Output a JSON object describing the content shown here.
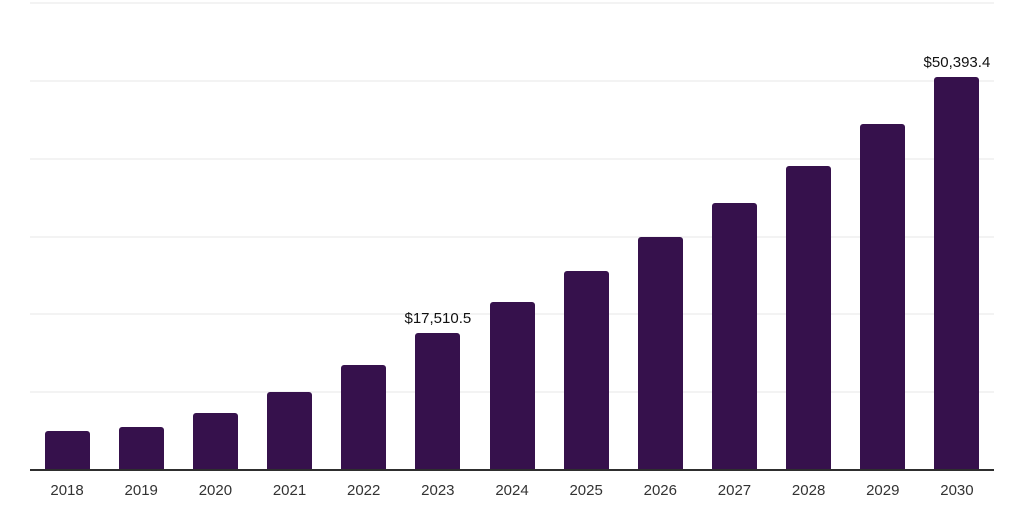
{
  "chart_data": {
    "type": "bar",
    "title": "",
    "xlabel": "",
    "ylabel": "",
    "categories": [
      "2018",
      "2019",
      "2020",
      "2021",
      "2022",
      "2023",
      "2024",
      "2025",
      "2026",
      "2027",
      "2028",
      "2029",
      "2030"
    ],
    "values": [
      4900,
      5400,
      7200,
      9900,
      13400,
      17510.5,
      21500,
      25400,
      29800,
      34200,
      38900,
      44300,
      50393.4
    ],
    "annotations": [
      {
        "index": 5,
        "text": "$17,510.5"
      },
      {
        "index": 12,
        "text": "$50,393.4"
      }
    ],
    "ylim": [
      0,
      60000
    ],
    "gridline_interval": 10000,
    "grid": "horizontal-only",
    "legend": "none",
    "y_axis_tick_labels": "none",
    "colors": {
      "bar": "#36114C",
      "gridline": "#f3f3f3",
      "axis_line": "#2e2e2e",
      "data_label": "#111111",
      "tick_label": "#333333",
      "background": "#ffffff"
    }
  }
}
